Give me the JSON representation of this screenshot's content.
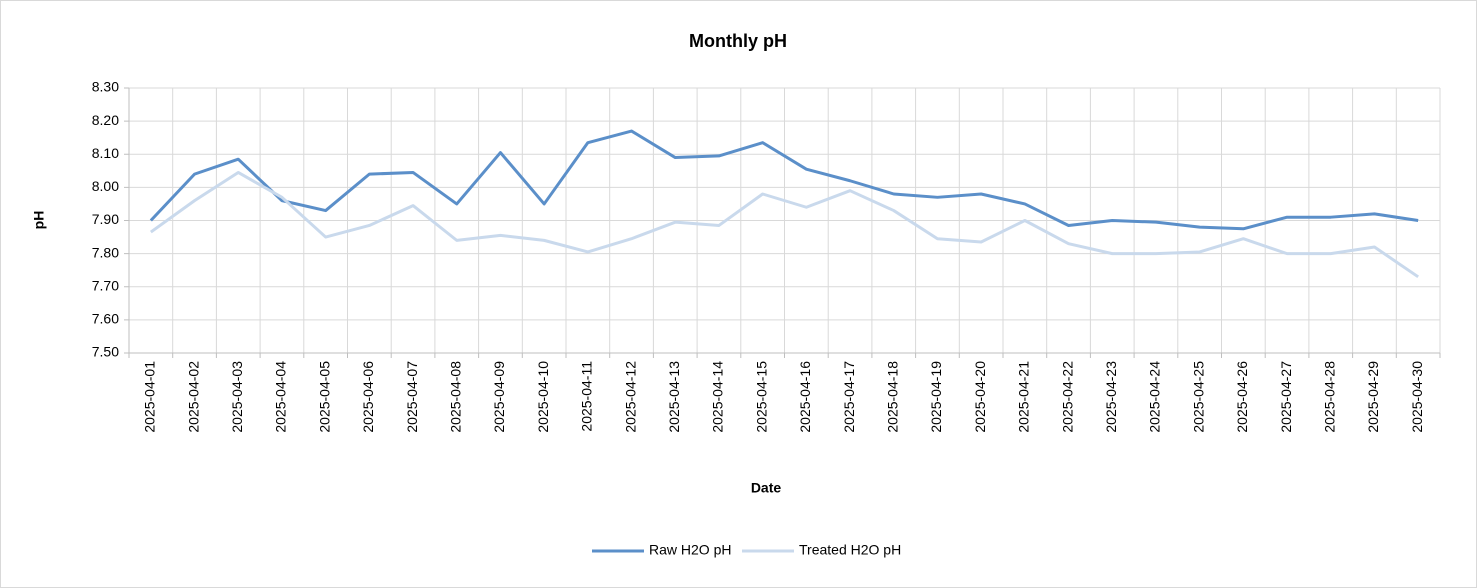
{
  "chart_data": {
    "type": "line",
    "title": "Monthly pH",
    "x_label": "Date",
    "y_label": "pH",
    "categories": [
      "2025-04-01",
      "2025-04-02",
      "2025-04-03",
      "2025-04-04",
      "2025-04-05",
      "2025-04-06",
      "2025-04-07",
      "2025-04-08",
      "2025-04-09",
      "2025-04-10",
      "2025-04-11",
      "2025-04-12",
      "2025-04-13",
      "2025-04-14",
      "2025-04-15",
      "2025-04-16",
      "2025-04-17",
      "2025-04-18",
      "2025-04-19",
      "2025-04-20",
      "2025-04-21",
      "2025-04-22",
      "2025-04-23",
      "2025-04-24",
      "2025-04-25",
      "2025-04-26",
      "2025-04-27",
      "2025-04-28",
      "2025-04-29",
      "2025-04-30"
    ],
    "series": [
      {
        "name": "Raw H2O pH",
        "color": "#5b8fc9",
        "values": [
          7.9,
          8.04,
          8.085,
          7.96,
          7.93,
          8.04,
          8.045,
          7.95,
          8.105,
          7.95,
          8.135,
          8.17,
          8.09,
          8.095,
          8.135,
          8.055,
          8.02,
          7.98,
          7.97,
          7.98,
          7.95,
          7.885,
          7.9,
          7.895,
          7.88,
          7.875,
          7.91,
          7.91,
          7.92,
          7.9
        ]
      },
      {
        "name": "Treated H2O pH",
        "color": "#c9d9ec",
        "values": [
          7.865,
          7.96,
          8.045,
          7.97,
          7.85,
          7.885,
          7.945,
          7.84,
          7.855,
          7.84,
          7.805,
          7.845,
          7.895,
          7.885,
          7.98,
          7.94,
          7.99,
          7.93,
          7.845,
          7.835,
          7.9,
          7.83,
          7.8,
          7.8,
          7.805,
          7.845,
          7.8,
          7.8,
          7.82,
          7.73
        ]
      }
    ],
    "ylim": [
      7.5,
      8.3
    ],
    "yticks": [
      {
        "value": 7.5,
        "label": "7.50"
      },
      {
        "value": 7.6,
        "label": "7.60"
      },
      {
        "value": 7.7,
        "label": "7.70"
      },
      {
        "value": 7.8,
        "label": "7.80"
      },
      {
        "value": 7.9,
        "label": "7.90"
      },
      {
        "value": 8.0,
        "label": "8.00"
      },
      {
        "value": 8.1,
        "label": "8.10"
      },
      {
        "value": 8.2,
        "label": "8.20"
      },
      {
        "value": 8.3,
        "label": "8.30"
      }
    ],
    "grid": true,
    "legend": "bottom"
  }
}
